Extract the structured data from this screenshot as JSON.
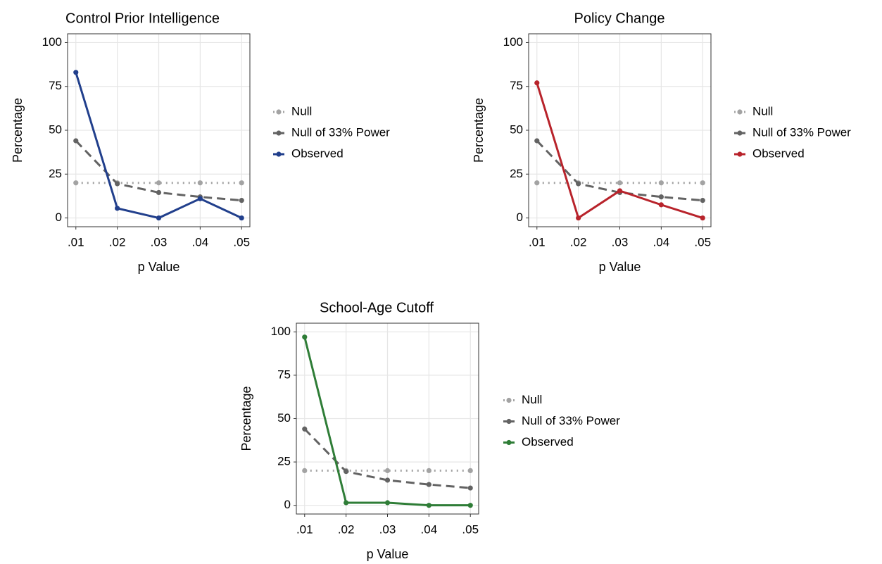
{
  "chart_data": [
    {
      "type": "line",
      "title": "Control Prior Intelligence",
      "xlabel": "p Value",
      "ylabel": "Percentage",
      "x": [
        0.01,
        0.02,
        0.03,
        0.04,
        0.05
      ],
      "xlim": [
        0.008,
        0.052
      ],
      "xticks": [
        {
          "value": 0.01,
          "label": ".01"
        },
        {
          "value": 0.02,
          "label": ".02"
        },
        {
          "value": 0.03,
          "label": ".03"
        },
        {
          "value": 0.04,
          "label": ".04"
        },
        {
          "value": 0.05,
          "label": ".05"
        }
      ],
      "ylim": [
        -5,
        105
      ],
      "yticks": [
        0,
        25,
        50,
        75,
        100
      ],
      "grid": true,
      "series": [
        {
          "name": "Null",
          "color": "#a3a3a3",
          "dash": "dotted",
          "values": [
            20,
            20,
            20,
            20,
            20
          ]
        },
        {
          "name": "Null of 33% Power",
          "color": "#636363",
          "dash": "dashed",
          "values": [
            44,
            19.5,
            14.5,
            12,
            10
          ]
        },
        {
          "name": "Observed",
          "color": "#213f8c",
          "dash": "solid",
          "values": [
            83,
            5.5,
            0,
            11,
            0
          ]
        }
      ]
    },
    {
      "type": "line",
      "title": "Policy Change",
      "xlabel": "p Value",
      "ylabel": "Percentage",
      "x": [
        0.01,
        0.02,
        0.03,
        0.04,
        0.05
      ],
      "xlim": [
        0.008,
        0.052
      ],
      "xticks": [
        {
          "value": 0.01,
          "label": ".01"
        },
        {
          "value": 0.02,
          "label": ".02"
        },
        {
          "value": 0.03,
          "label": ".03"
        },
        {
          "value": 0.04,
          "label": ".04"
        },
        {
          "value": 0.05,
          "label": ".05"
        }
      ],
      "ylim": [
        -5,
        105
      ],
      "yticks": [
        0,
        25,
        50,
        75,
        100
      ],
      "grid": true,
      "series": [
        {
          "name": "Null",
          "color": "#a3a3a3",
          "dash": "dotted",
          "values": [
            20,
            20,
            20,
            20,
            20
          ]
        },
        {
          "name": "Null of 33% Power",
          "color": "#636363",
          "dash": "dashed",
          "values": [
            44,
            19.5,
            14.5,
            12,
            10
          ]
        },
        {
          "name": "Observed",
          "color": "#b8232b",
          "dash": "solid",
          "values": [
            77,
            0,
            15.5,
            7.5,
            0
          ]
        }
      ]
    },
    {
      "type": "line",
      "title": "School-Age Cutoff",
      "xlabel": "p Value",
      "ylabel": "Percentage",
      "x": [
        0.01,
        0.02,
        0.03,
        0.04,
        0.05
      ],
      "xlim": [
        0.008,
        0.052
      ],
      "xticks": [
        {
          "value": 0.01,
          "label": ".01"
        },
        {
          "value": 0.02,
          "label": ".02"
        },
        {
          "value": 0.03,
          "label": ".03"
        },
        {
          "value": 0.04,
          "label": ".04"
        },
        {
          "value": 0.05,
          "label": ".05"
        }
      ],
      "ylim": [
        -5,
        105
      ],
      "yticks": [
        0,
        25,
        50,
        75,
        100
      ],
      "grid": true,
      "series": [
        {
          "name": "Null",
          "color": "#a3a3a3",
          "dash": "dotted",
          "values": [
            20,
            20,
            20,
            20,
            20
          ]
        },
        {
          "name": "Null of 33% Power",
          "color": "#636363",
          "dash": "dashed",
          "values": [
            44,
            19.5,
            14.5,
            12,
            10
          ]
        },
        {
          "name": "Observed",
          "color": "#2f7d37",
          "dash": "solid",
          "values": [
            97,
            1.5,
            1.5,
            0,
            0
          ]
        }
      ]
    }
  ]
}
